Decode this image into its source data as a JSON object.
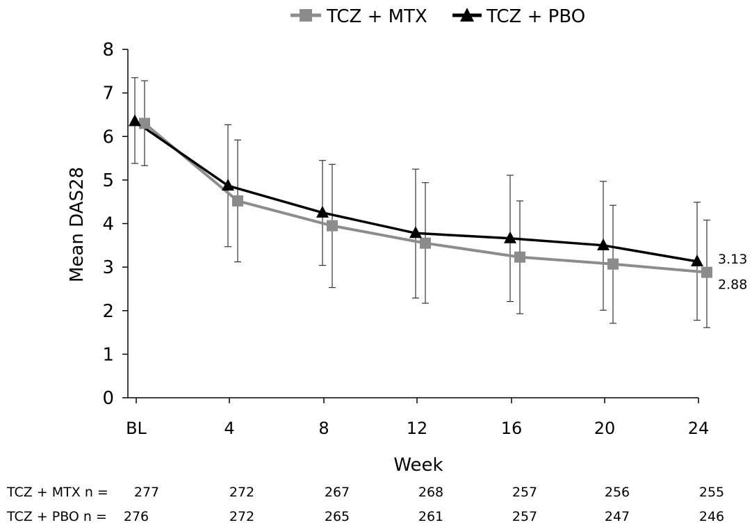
{
  "chart_data": {
    "type": "line",
    "categories": [
      "BL",
      "4",
      "8",
      "12",
      "16",
      "20",
      "24"
    ],
    "xlabel": "Week",
    "ylabel": "Mean DAS28",
    "ylim": [
      0,
      8
    ],
    "yticks": [
      "0",
      "1",
      "2",
      "3",
      "4",
      "5",
      "6",
      "7",
      "8"
    ],
    "grid": false,
    "legend_position": "top",
    "series": [
      {
        "name": "TCZ + MTX",
        "color": "#8c8c8c",
        "marker": "square",
        "values": [
          6.3,
          4.52,
          3.95,
          3.55,
          3.23,
          3.07,
          2.88
        ],
        "error_low": [
          5.33,
          3.12,
          2.53,
          2.17,
          1.93,
          1.71,
          1.61
        ],
        "error_high": [
          7.28,
          5.92,
          5.36,
          4.94,
          4.52,
          4.42,
          4.08
        ],
        "end_label": "2.88",
        "n_label": "TCZ + MTX n =",
        "n": [
          "277",
          "272",
          "267",
          "268",
          "257",
          "256",
          "255"
        ]
      },
      {
        "name": "TCZ + PBO",
        "color": "#000000",
        "marker": "triangle",
        "values": [
          6.35,
          4.87,
          4.25,
          3.78,
          3.66,
          3.5,
          3.13
        ],
        "error_low": [
          5.38,
          3.47,
          3.04,
          2.29,
          2.21,
          2.01,
          1.78
        ],
        "error_high": [
          7.35,
          6.27,
          5.45,
          5.25,
          5.11,
          4.97,
          4.49
        ],
        "end_label": "3.13",
        "n_label": "TCZ + PBO n =",
        "n": [
          "276",
          "272",
          "265",
          "261",
          "257",
          "247",
          "246"
        ]
      }
    ]
  }
}
